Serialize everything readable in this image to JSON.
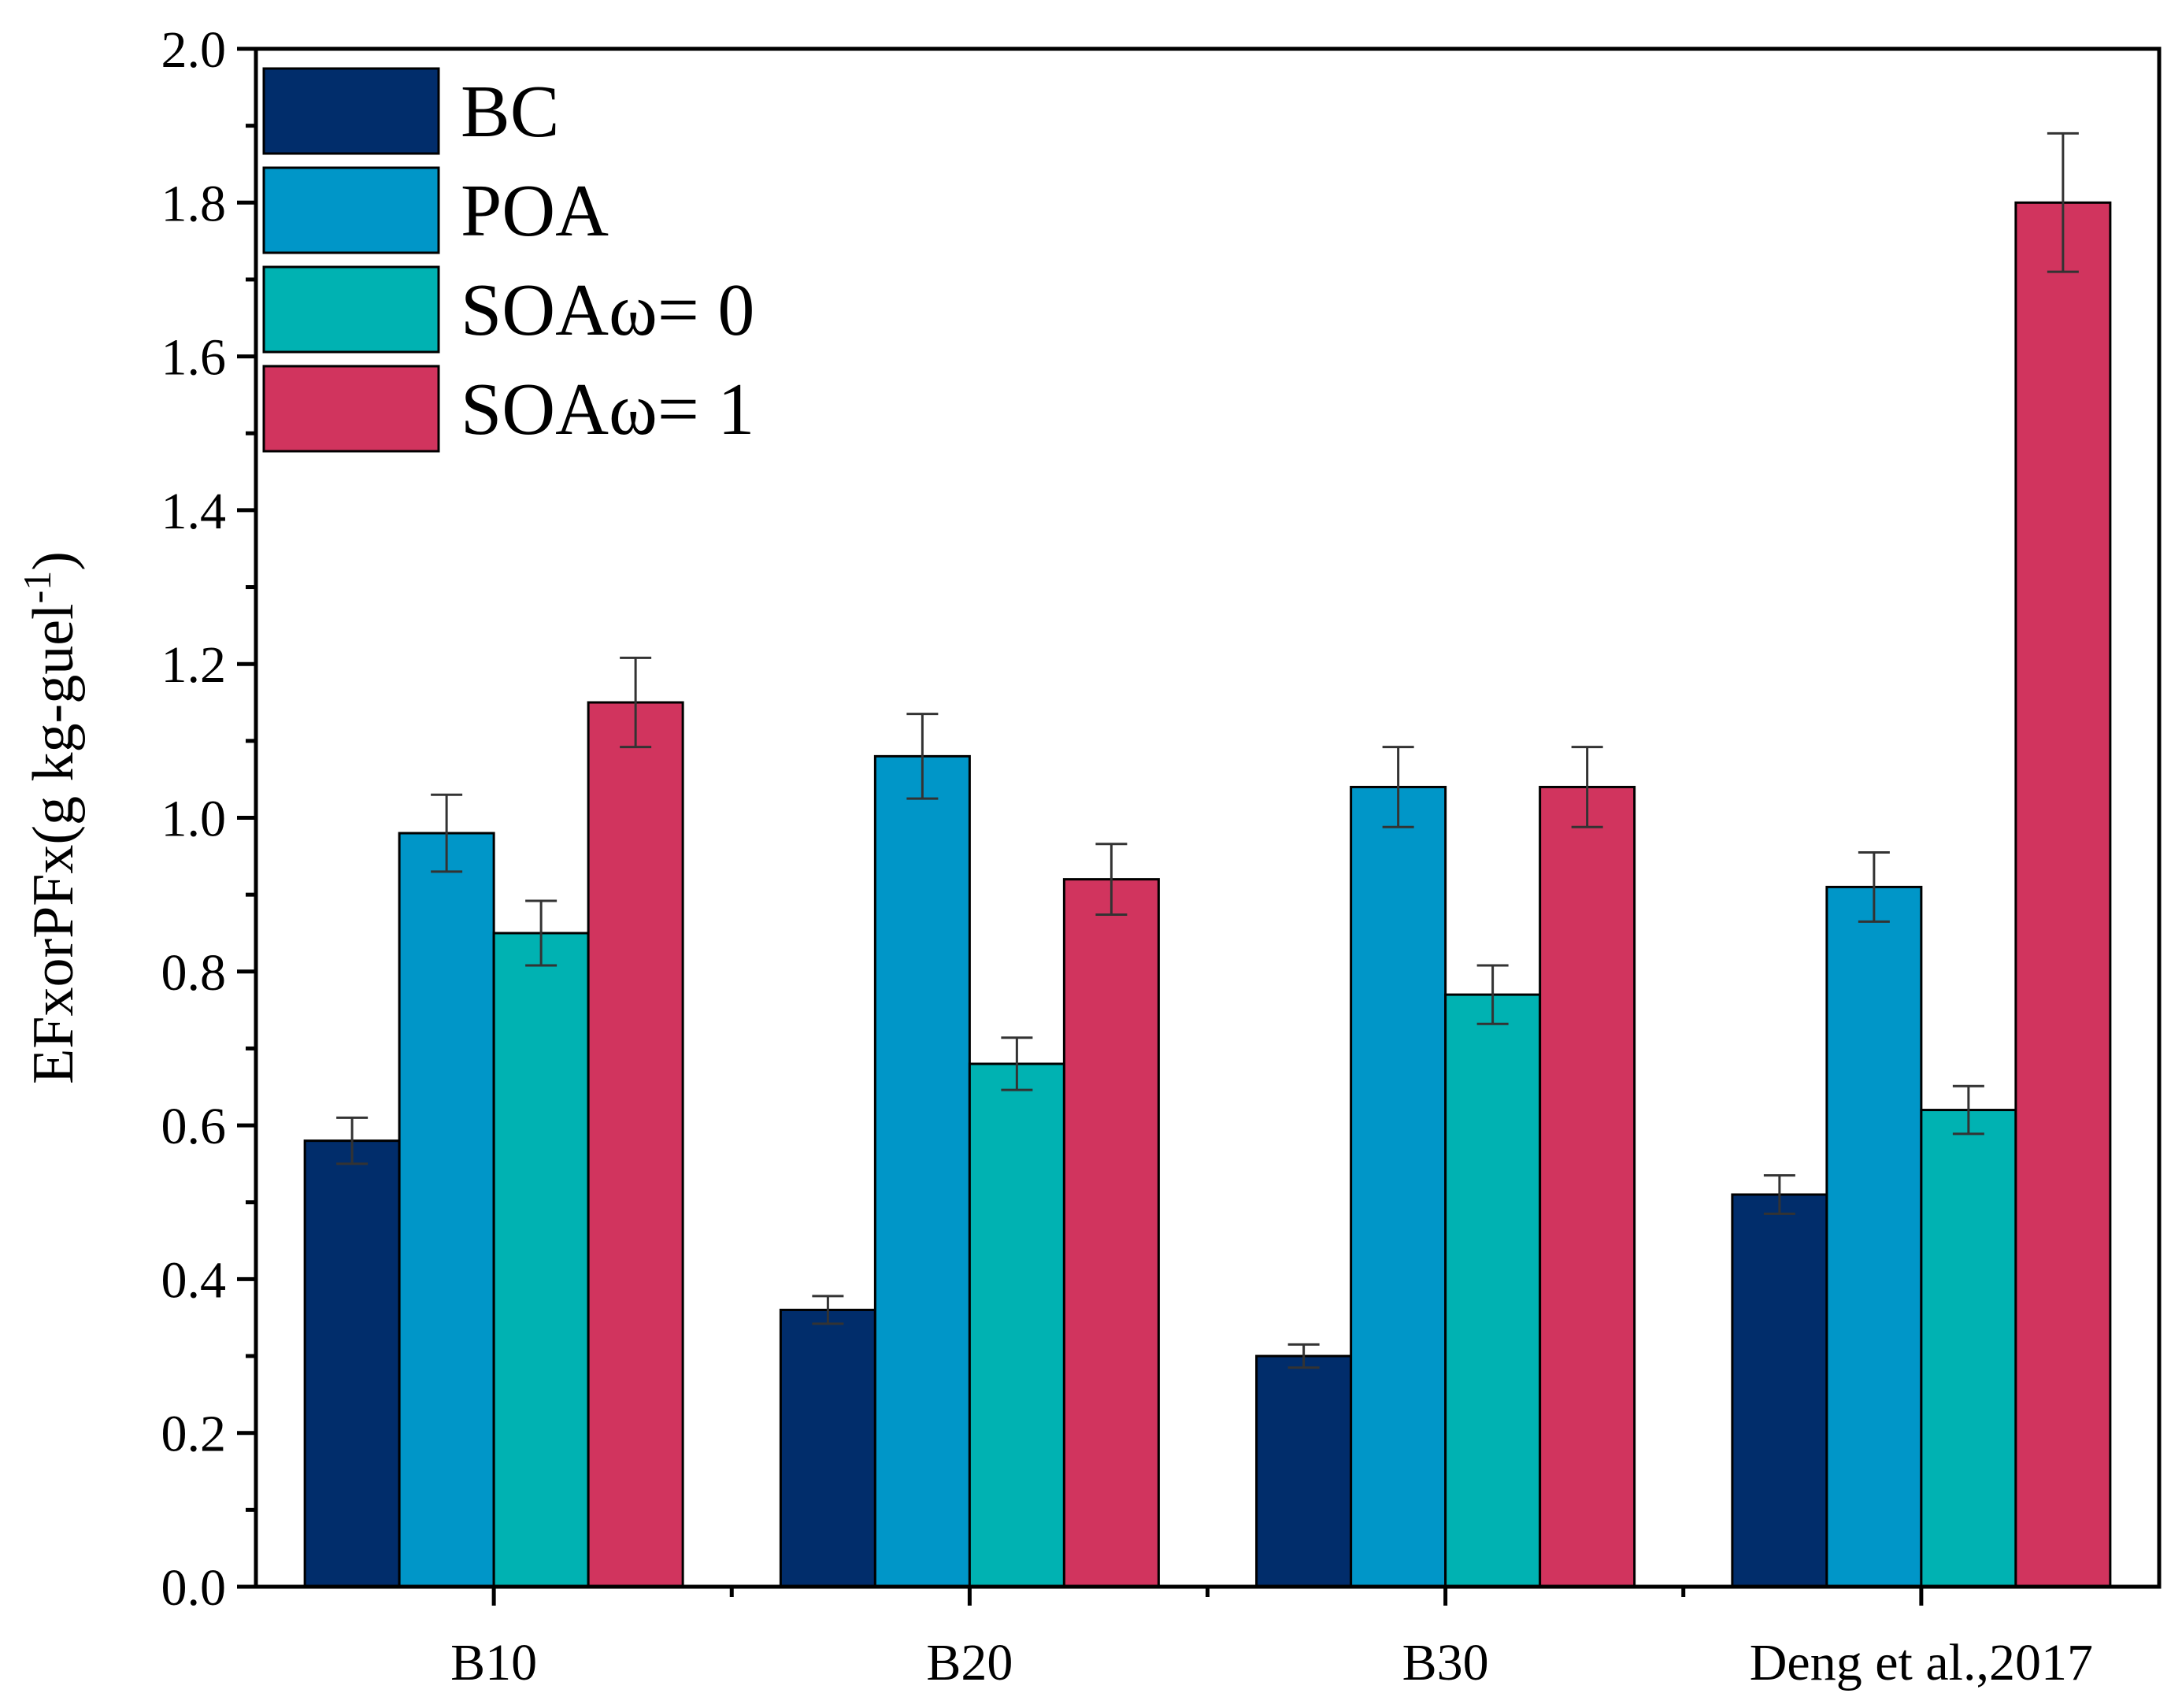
{
  "chart_data": {
    "type": "bar",
    "title": "",
    "xlabel": "",
    "ylabel": "EFxorPFx(g kg-guel",
    "ylabel_superscript": "-1",
    "ylabel_suffix": ")",
    "ylim": [
      0,
      2.0
    ],
    "yticks": [
      0.0,
      0.2,
      0.4,
      0.6,
      0.8,
      1.0,
      1.2,
      1.4,
      1.6,
      1.8,
      2.0
    ],
    "ytick_labels": [
      "0.0",
      "0.2",
      "0.4",
      "0.6",
      "0.8",
      "1.0",
      "1.2",
      "1.4",
      "1.6",
      "1.8",
      "2.0"
    ],
    "categories": [
      "B10",
      "B20",
      "B30",
      "Deng et al.,2017"
    ],
    "grid": false,
    "legend_position": "top-left",
    "series": [
      {
        "name": "BC",
        "color": "#012D6B",
        "values": [
          0.58,
          0.36,
          0.3,
          0.51
        ],
        "errors": [
          0.03,
          0.018,
          0.015,
          0.025
        ]
      },
      {
        "name": "POA",
        "color": "#0096C8",
        "values": [
          0.98,
          1.08,
          1.04,
          0.91
        ],
        "errors": [
          0.05,
          0.055,
          0.052,
          0.045
        ]
      },
      {
        "name": "SOAω= 0",
        "color": "#00B2B2",
        "values": [
          0.85,
          0.68,
          0.77,
          0.62
        ],
        "errors": [
          0.042,
          0.034,
          0.038,
          0.031
        ]
      },
      {
        "name": "SOAω= 1",
        "color": "#D1345E",
        "values": [
          1.15,
          0.92,
          1.04,
          1.8
        ],
        "errors": [
          0.058,
          0.046,
          0.052,
          0.09
        ]
      }
    ]
  }
}
